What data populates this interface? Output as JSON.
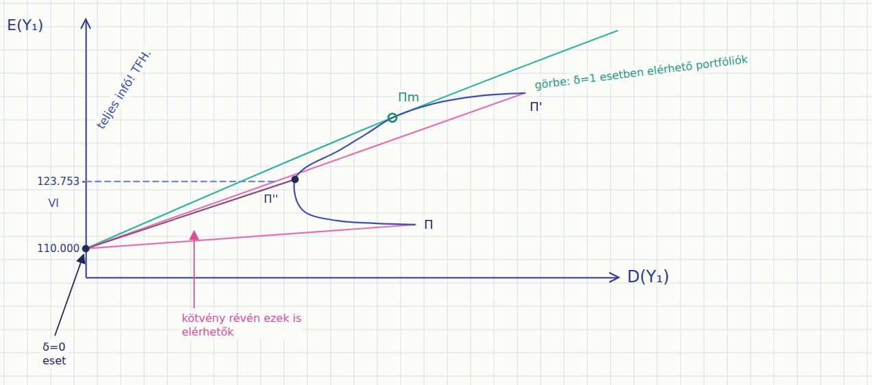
{
  "chart_data": {
    "type": "line",
    "x_label": "D(Y₁)",
    "y_label": "E(Y₁)",
    "xlim": [
      0,
      77.5
    ],
    "ylim": [
      104100,
      156700
    ],
    "yticks": [
      {
        "value": 110000,
        "label": "110.000"
      },
      {
        "value": 123753,
        "label": "123.753"
      }
    ],
    "tick_labels": "y",
    "series": [
      {
        "type": "line",
        "color": "#2fb39b",
        "line_style": "solid",
        "x": [
          0,
          44.7,
          77.5
        ],
        "values": [
          110000,
          136805,
          154628
        ]
      },
      {
        "type": "line",
        "color": "#e46fb3",
        "line_style": "solid",
        "x": [
          0,
          48.0
        ],
        "values": [
          110000,
          114912
        ]
      },
      {
        "type": "line",
        "color": "#e46fb3",
        "line_style": "solid",
        "x": [
          0,
          64.0
        ],
        "values": [
          110000,
          141857
        ]
      },
      {
        "type": "line",
        "color": "#8a4b78",
        "line_style": "solid",
        "x": [
          0,
          30.5
        ],
        "values": [
          110000,
          124174
        ]
      },
      {
        "type": "line",
        "color": "#3a4fb0",
        "line_style": "solid",
        "x": [
          48.0,
          44.5,
          36.5,
          32.0,
          30.7,
          30.5,
          32.0,
          36.5,
          41.0,
          44.7,
          50.5,
          57.5,
          64.0
        ],
        "values": [
          114912,
          115052,
          115754,
          117438,
          119964,
          124174,
          126560,
          129788,
          133577,
          136805,
          139612,
          141296,
          141857
        ]
      },
      {
        "type": "line",
        "color": "#6f86d6",
        "line_style": "dashed",
        "x": [
          0,
          27.5
        ],
        "values": [
          123753,
          123753
        ]
      },
      {
        "type": "scatter",
        "color": "#1f2a5c",
        "marker": "circle",
        "x": [
          0,
          30.5
        ],
        "values": [
          110000,
          124174
        ]
      },
      {
        "type": "scatter",
        "color": "#1f8f6e",
        "marker": "ring",
        "x": [
          44.7
        ],
        "values": [
          136805
        ]
      }
    ],
    "annotations": [
      {
        "text": "teljes infó! TFH.",
        "x": 2.5,
        "y": 134279,
        "color": "#3a4fb0"
      },
      {
        "text": "görbe: δ=1 esetben elérhető portfóliók",
        "x": 65.5,
        "y": 142699,
        "color": "#1f9c80"
      },
      {
        "text": "Πm",
        "x": 45.5,
        "y": 140173,
        "color": "#1f8f6e"
      },
      {
        "text": "Π'",
        "x": 64.7,
        "y": 138208,
        "color": "#1f2a5c"
      },
      {
        "text": "Π",
        "x": 49.3,
        "y": 114070,
        "color": "#1f2a5c"
      },
      {
        "text": "Π''",
        "x": 27.0,
        "y": 119403,
        "color": "#1f2a5c"
      },
      {
        "text": "kötvény révén ezek is elérhetők",
        "x": 14.0,
        "y": 94984,
        "color": "#d94f9a"
      },
      {
        "text": "δ=0 eset",
        "x": -6.3,
        "y": 89089,
        "color": "#1f2a5c"
      },
      {
        "text": "VI",
        "x": -4.7,
        "y": 118561,
        "color": "#3a4fb0"
      }
    ]
  }
}
